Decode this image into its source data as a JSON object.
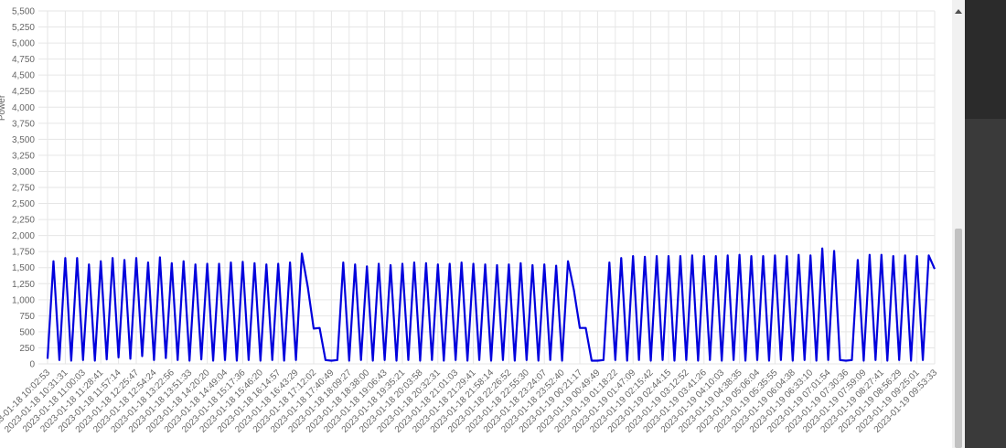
{
  "chart_data": {
    "type": "line",
    "y_label": "Power",
    "categories": [
      "2023-01-18 10:02:53",
      null,
      null,
      "2023-01-18 10:31:31",
      null,
      null,
      "2023-01-18 11:00:03",
      null,
      null,
      "2023-01-18 11:28:41",
      null,
      null,
      "2023-01-18 11:57:14",
      null,
      null,
      "2023-01-18 12:25:47",
      null,
      null,
      "2023-01-18 12:54:24",
      null,
      null,
      "2023-01-18 13:22:56",
      null,
      null,
      "2023-01-18 13:51:33",
      null,
      null,
      "2023-01-18 14:20:20",
      null,
      null,
      "2023-01-18 14:49:04",
      null,
      null,
      "2023-01-18 15:17:36",
      null,
      null,
      "2023-01-18 15:46:20",
      null,
      null,
      "2023-01-18 16:14:57",
      null,
      null,
      "2023-01-18 16:43:29",
      null,
      null,
      "2023-01-18 17:12:02",
      null,
      null,
      "2023-01-18 17:40:49",
      null,
      null,
      "2023-01-18 18:09:27",
      null,
      null,
      "2023-01-18 18:38:00",
      null,
      null,
      "2023-01-18 19:06:43",
      null,
      null,
      "2023-01-18 19:35:21",
      null,
      null,
      "2023-01-18 20:03:58",
      null,
      null,
      "2023-01-18 20:32:31",
      null,
      null,
      "2023-01-18 21:01:03",
      null,
      null,
      "2023-01-18 21:29:41",
      null,
      null,
      "2023-01-18 21:58:14",
      null,
      null,
      "2023-01-18 22:26:52",
      null,
      null,
      "2023-01-18 22:55:30",
      null,
      null,
      "2023-01-18 23:24:07",
      null,
      null,
      "2023-01-18 23:52:40",
      null,
      null,
      "2023-01-19 00:21:17",
      null,
      null,
      "2023-01-19 00:49:49",
      null,
      null,
      "2023-01-19 01:18:22",
      null,
      null,
      "2023-01-19 01:47:09",
      null,
      null,
      "2023-01-19 02:15:42",
      null,
      null,
      "2023-01-19 02:44:15",
      null,
      null,
      "2023-01-19 03:12:52",
      null,
      null,
      "2023-01-19 03:41:26",
      null,
      null,
      "2023-01-19 04:10:03",
      null,
      null,
      "2023-01-19 04:38:35",
      null,
      null,
      "2023-01-19 05:06:04",
      null,
      null,
      "2023-01-19 05:35:55",
      null,
      null,
      "2023-01-19 06:04:38",
      null,
      null,
      "2023-01-19 06:33:10",
      null,
      null,
      "2023-01-19 07:01:54",
      null,
      null,
      "2023-01-19 07:30:36",
      null,
      null,
      "2023-01-19 07:59:09",
      null,
      null,
      "2023-01-19 08:27:41",
      null,
      null,
      "2023-01-19 08:56:29",
      null,
      null,
      "2023-01-19 09:25:01",
      null,
      null,
      "2023-01-19 09:53:33"
    ],
    "series": [
      {
        "color": "#0000dd",
        "values": [
          80,
          1600,
          60,
          1650,
          50,
          1650,
          60,
          1550,
          50,
          1600,
          70,
          1650,
          100,
          1620,
          80,
          1650,
          120,
          1580,
          60,
          1660,
          90,
          1570,
          60,
          1600,
          50,
          1550,
          70,
          1560,
          50,
          1560,
          60,
          1580,
          50,
          1590,
          60,
          1570,
          50,
          1550,
          60,
          1560,
          50,
          1580,
          60,
          1720,
          1200,
          550,
          560,
          60,
          50,
          60,
          1580,
          50,
          1550,
          60,
          1520,
          50,
          1560,
          60,
          1540,
          50,
          1560,
          60,
          1580,
          50,
          1570,
          60,
          1550,
          50,
          1560,
          60,
          1580,
          50,
          1560,
          60,
          1550,
          50,
          1540,
          60,
          1550,
          50,
          1570,
          60,
          1540,
          50,
          1550,
          60,
          1530,
          50,
          1600,
          1150,
          560,
          560,
          50,
          50,
          60,
          1580,
          60,
          1650,
          50,
          1680,
          60,
          1670,
          50,
          1680,
          60,
          1680,
          50,
          1680,
          60,
          1690,
          50,
          1680,
          60,
          1680,
          50,
          1690,
          60,
          1700,
          50,
          1680,
          60,
          1680,
          50,
          1690,
          60,
          1680,
          50,
          1700,
          60,
          1690,
          50,
          1800,
          60,
          1760,
          60,
          50,
          60,
          1620,
          50,
          1700,
          60,
          1700,
          50,
          1680,
          60,
          1690,
          50,
          1680,
          60,
          1690,
          1480
        ]
      }
    ],
    "ylim": [
      0,
      5500
    ],
    "yticks": [
      0,
      250,
      500,
      750,
      {
        "value": 1000,
        "label": "1,000"
      },
      {
        "value": 1250,
        "label": "1,250"
      },
      {
        "value": 1500,
        "label": "1,500"
      },
      {
        "value": 1750,
        "label": "1,750"
      },
      {
        "value": 2000,
        "label": "2,000"
      },
      {
        "value": 2250,
        "label": "2,250"
      },
      {
        "value": 2500,
        "label": "2,500"
      },
      {
        "value": 2750,
        "label": "2,750"
      },
      {
        "value": 3000,
        "label": "3,000"
      },
      {
        "value": 3250,
        "label": "3,250"
      },
      {
        "value": 3500,
        "label": "3,500"
      },
      {
        "value": 3750,
        "label": "3,750"
      },
      {
        "value": 4000,
        "label": "4,000"
      },
      {
        "value": 4250,
        "label": "4,250"
      },
      {
        "value": 4500,
        "label": "4,500"
      },
      {
        "value": 4750,
        "label": "4,750"
      },
      {
        "value": 5000,
        "label": "5,000"
      },
      {
        "value": 5250,
        "label": "5,250"
      },
      {
        "value": 5500,
        "label": "5,500"
      }
    ],
    "grid": true
  }
}
